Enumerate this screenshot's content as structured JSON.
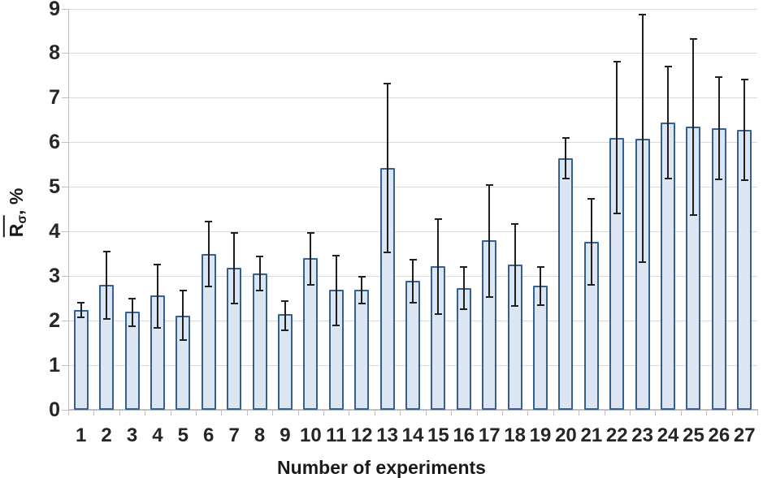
{
  "chart_data": {
    "type": "bar",
    "title": "",
    "xlabel": "Number of experiments",
    "ylabel": "R̄σ, %",
    "ylabel_parts": {
      "base": "R",
      "subscript": "σ",
      "suffix": ", %"
    },
    "categories": [
      "1",
      "2",
      "3",
      "4",
      "5",
      "6",
      "7",
      "8",
      "9",
      "10",
      "11",
      "12",
      "13",
      "14",
      "15",
      "16",
      "17",
      "18",
      "19",
      "20",
      "21",
      "22",
      "23",
      "24",
      "25",
      "26",
      "27"
    ],
    "values": [
      2.24,
      2.8,
      2.2,
      2.56,
      2.12,
      3.49,
      3.18,
      3.06,
      2.15,
      3.4,
      2.69,
      2.7,
      5.43,
      2.89,
      3.23,
      2.73,
      3.8,
      3.26,
      2.79,
      5.64,
      3.78,
      6.1,
      6.09,
      6.45,
      6.36,
      6.33,
      6.29
    ],
    "error_bars": {
      "whisker_low": [
        2.08,
        2.04,
        1.88,
        1.84,
        1.56,
        2.77,
        2.39,
        2.68,
        1.78,
        2.81,
        1.89,
        2.38,
        3.54,
        2.4,
        2.15,
        2.26,
        2.53,
        2.33,
        2.35,
        5.19,
        2.81,
        4.4,
        3.31,
        5.19,
        4.37,
        5.18,
        5.16
      ],
      "whisker_high": [
        2.4,
        3.56,
        2.5,
        3.27,
        2.68,
        4.22,
        3.98,
        3.45,
        2.45,
        3.97,
        3.47,
        2.99,
        7.32,
        3.37,
        4.29,
        3.21,
        5.05,
        4.17,
        3.21,
        6.1,
        4.74,
        7.82,
        8.87,
        7.71,
        8.32,
        7.47,
        7.42
      ]
    },
    "ylim": [
      0,
      9
    ],
    "yticks": [
      0,
      1,
      2,
      3,
      4,
      5,
      6,
      7,
      8,
      9
    ],
    "grid": "horizontal",
    "legend": "none",
    "colors": {
      "bar_fill": "#dce6f2",
      "bar_border": "#366092",
      "error_bar": "#1f1f1f",
      "gridline": "#d9d9d9",
      "axis_line": "#bfbfbf",
      "tick_text": "#262626",
      "title_text": "#1a1a1a"
    }
  }
}
